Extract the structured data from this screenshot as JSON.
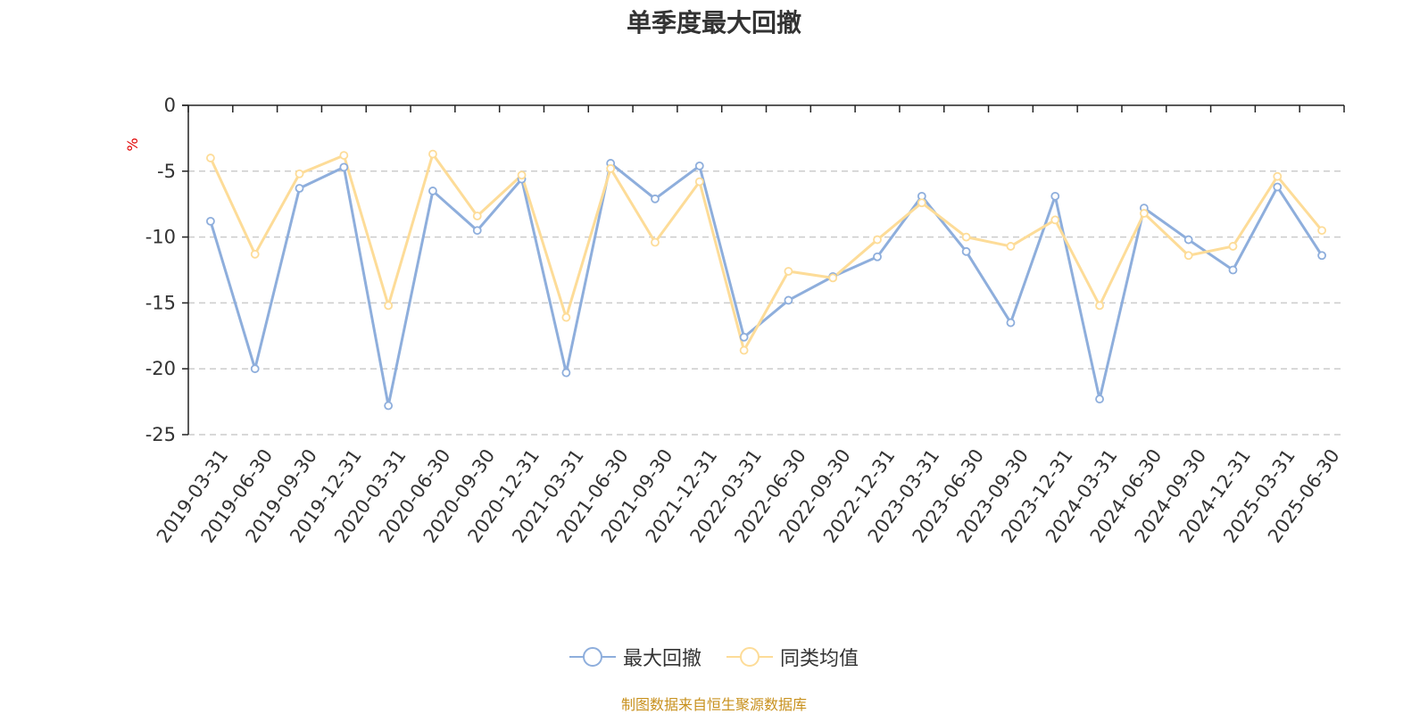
{
  "title": "单季度最大回撤",
  "source_text": "制图数据来自恒生聚源数据库",
  "colors": {
    "series1": "#8eaedc",
    "series2": "#fddc98",
    "unit": "#e00000",
    "source": "#c8911e",
    "axis": "#222222",
    "grid": "#cccccc",
    "text": "#333333"
  },
  "chart_data": {
    "type": "line",
    "title": "单季度最大回撤",
    "ylabel": "%",
    "ylim": [
      -25,
      0
    ],
    "yticks": [
      0,
      -5,
      -10,
      -15,
      -20,
      -25
    ],
    "grid": "horizontal-dashed",
    "legend_position": "bottom-center",
    "categories": [
      "2019-03-31",
      "2019-06-30",
      "2019-09-30",
      "2019-12-31",
      "2020-03-31",
      "2020-06-30",
      "2020-09-30",
      "2020-12-31",
      "2021-03-31",
      "2021-06-30",
      "2021-09-30",
      "2021-12-31",
      "2022-03-31",
      "2022-06-30",
      "2022-09-30",
      "2022-12-31",
      "2023-03-31",
      "2023-06-30",
      "2023-09-30",
      "2023-12-31",
      "2024-03-31",
      "2024-06-30",
      "2024-09-30",
      "2024-12-31",
      "2025-03-31",
      "2025-06-30"
    ],
    "series": [
      {
        "name": "最大回撤",
        "color": "#8eaedc",
        "values": [
          -8.8,
          -20.0,
          -6.3,
          -4.7,
          -22.8,
          -6.5,
          -9.5,
          -5.6,
          -20.3,
          -4.4,
          -7.1,
          -4.6,
          -17.6,
          -14.8,
          -13.0,
          -11.5,
          -6.9,
          -11.1,
          -16.5,
          -6.9,
          -22.3,
          -7.8,
          -10.2,
          -12.5,
          -6.2,
          -11.4
        ]
      },
      {
        "name": "同类均值",
        "color": "#fddc98",
        "values": [
          -4.0,
          -11.3,
          -5.2,
          -3.8,
          -15.2,
          -3.7,
          -8.4,
          -5.3,
          -16.1,
          -4.8,
          -10.4,
          -5.8,
          -18.6,
          -12.6,
          -13.1,
          -10.2,
          -7.4,
          -10.0,
          -10.7,
          -8.7,
          -15.2,
          -8.2,
          -11.4,
          -10.7,
          -5.4,
          -9.5
        ]
      }
    ]
  }
}
